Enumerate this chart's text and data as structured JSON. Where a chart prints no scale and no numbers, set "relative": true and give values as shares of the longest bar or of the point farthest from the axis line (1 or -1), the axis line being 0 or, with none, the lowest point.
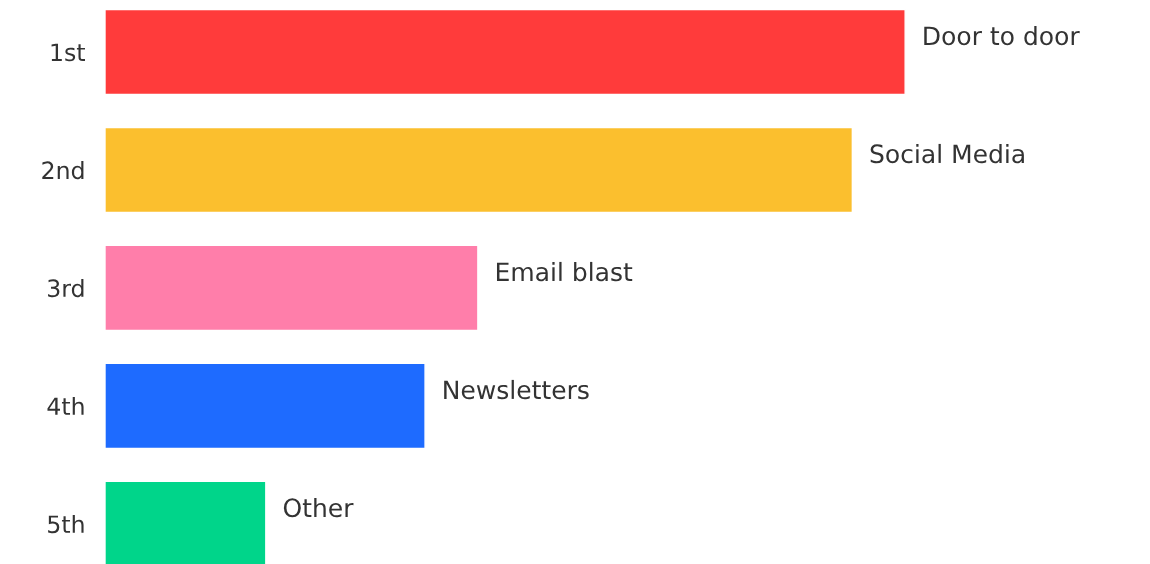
{
  "chart_data": {
    "type": "bar",
    "orientation": "horizontal",
    "relative": true,
    "categories": [
      "1st",
      "2nd",
      "3rd",
      "4th",
      "5th"
    ],
    "values": [
      1,
      0.934,
      0.466,
      0.4,
      0.201
    ],
    "colors": [
      "#ff3b3b",
      "#fbbf2e",
      "#ff7eaa",
      "#1e6bff",
      "#00d58a"
    ],
    "annotations": [
      {
        "text": "Door to door",
        "x": 1,
        "y": "1st"
      },
      {
        "text": "Social Media",
        "x": 0.934,
        "y": "2nd"
      },
      {
        "text": "Email blast",
        "x": 0.466,
        "y": "3rd"
      },
      {
        "text": "Newsletters",
        "x": 0.4,
        "y": "4th"
      },
      {
        "text": "Other",
        "x": 0.201,
        "y": "5th"
      }
    ],
    "grid": false,
    "legend": false
  }
}
